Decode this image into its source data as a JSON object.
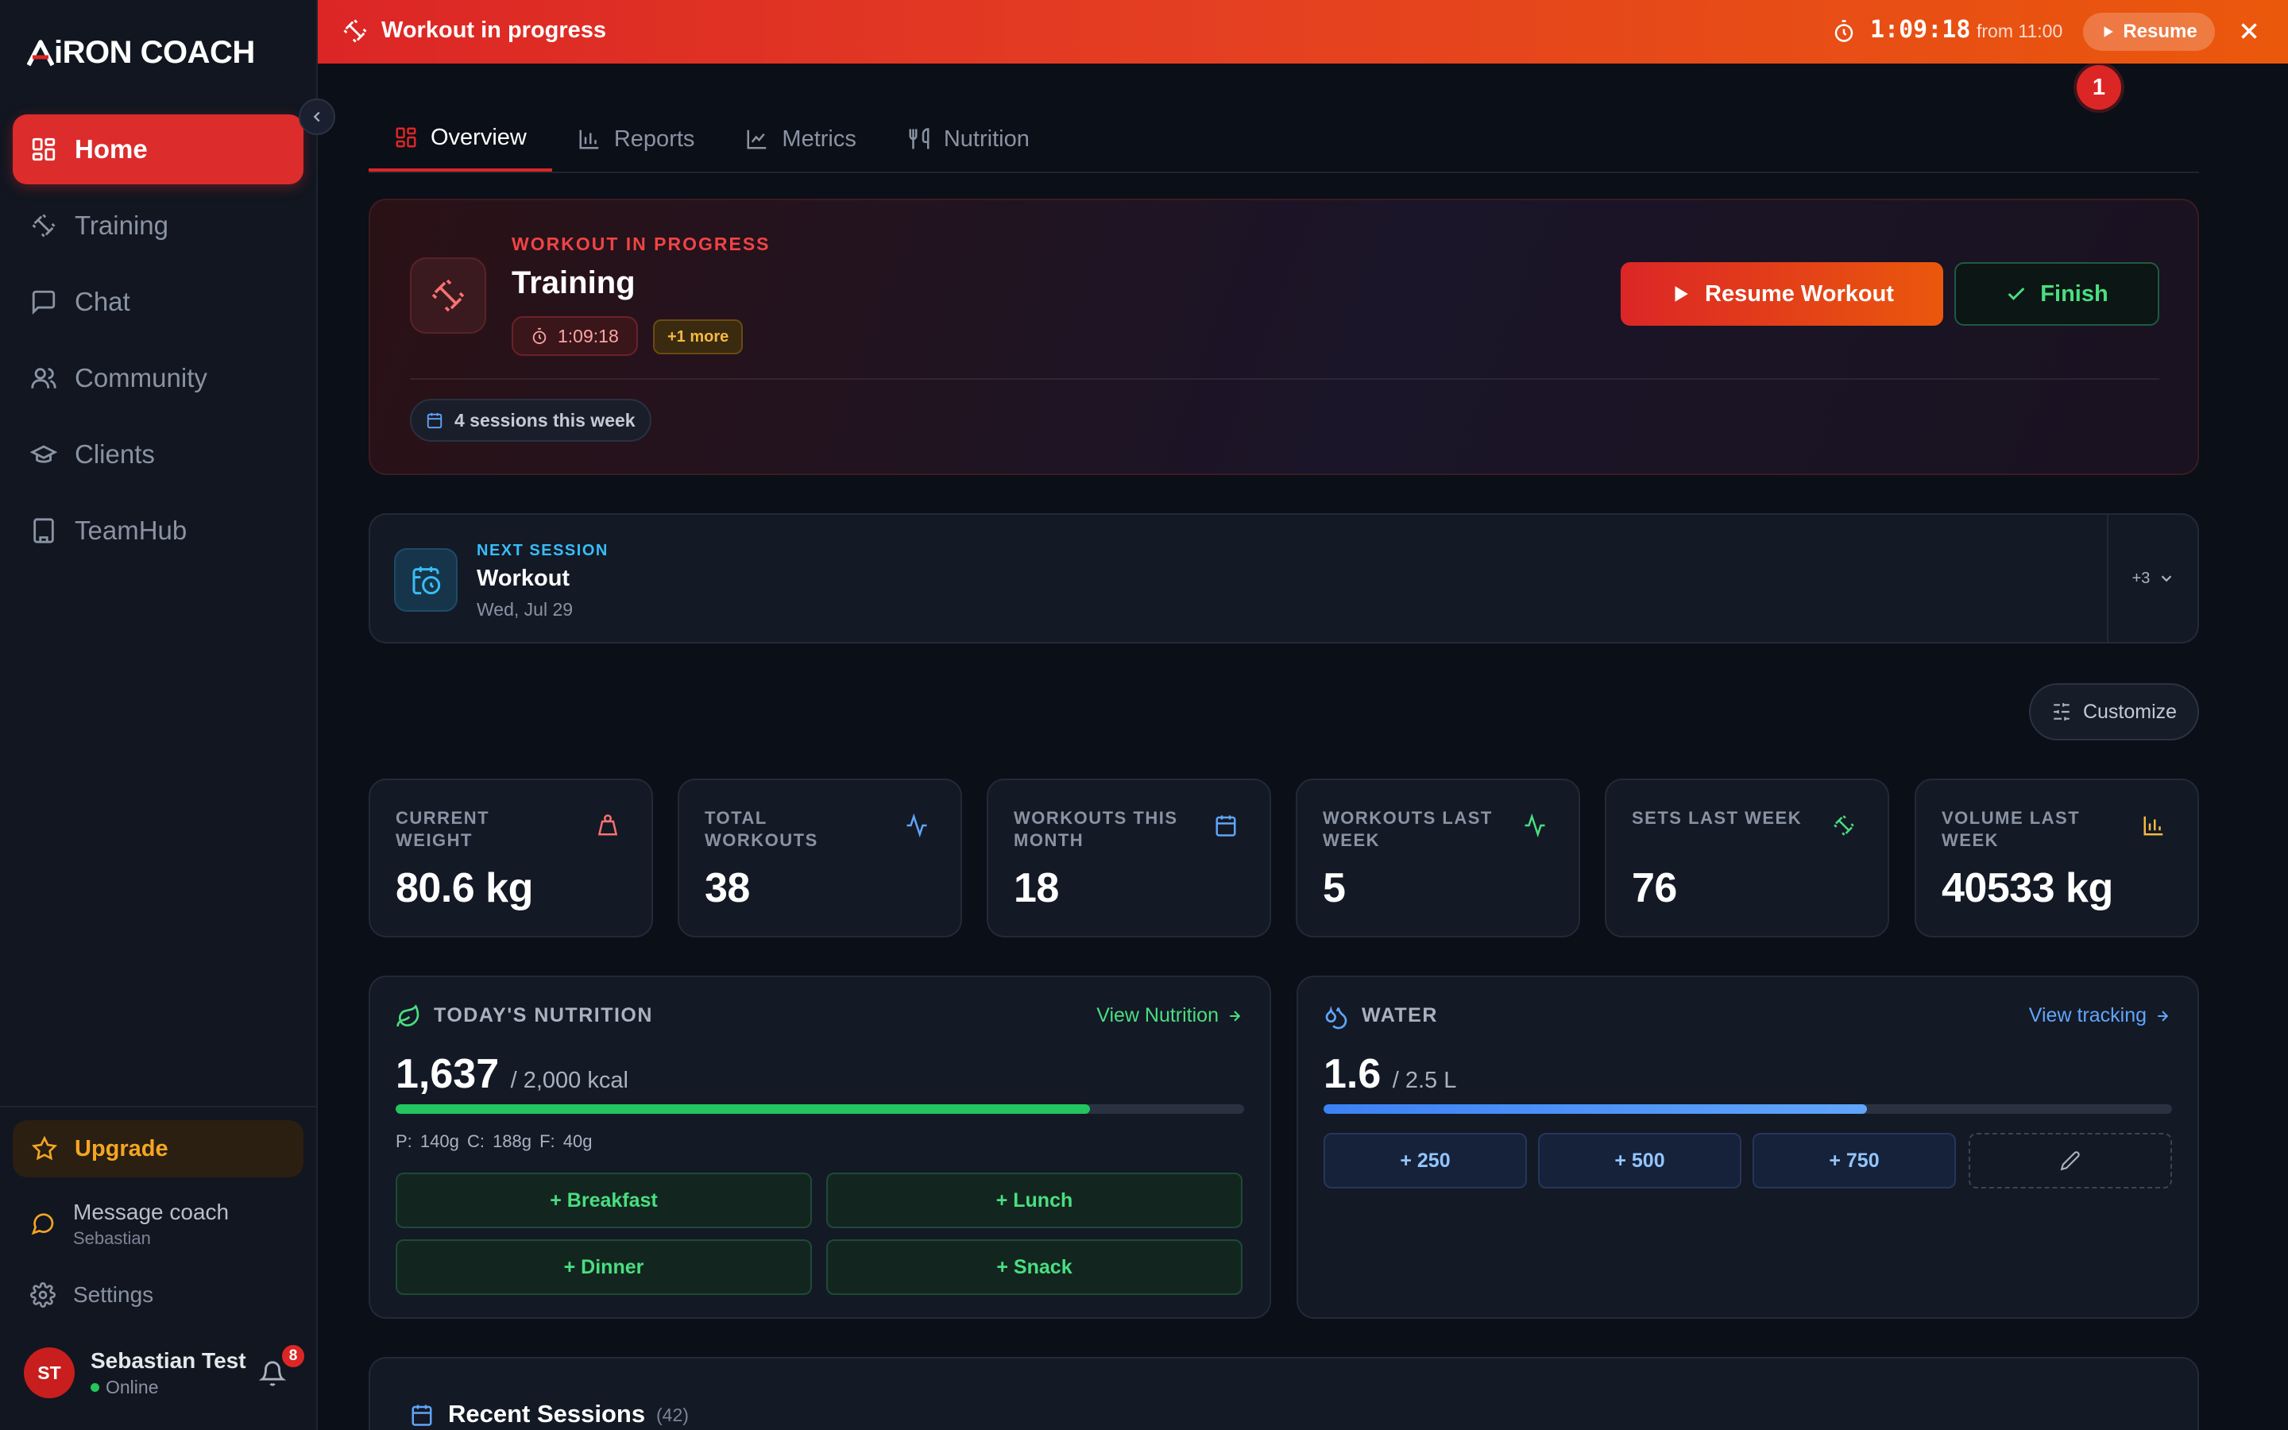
{
  "app": {
    "logo_text": "AIRON COACH",
    "logo_text_rest": "iRON COACH"
  },
  "sidebar": {
    "items": [
      {
        "label": "Home",
        "icon": "grid-icon",
        "active": true
      },
      {
        "label": "Training",
        "icon": "dumbbell-icon"
      },
      {
        "label": "Chat",
        "icon": "chat-icon"
      },
      {
        "label": "Community",
        "icon": "users-icon"
      },
      {
        "label": "Clients",
        "icon": "graduation-cap-icon"
      },
      {
        "label": "TeamHub",
        "icon": "building-icon"
      }
    ],
    "upgrade_label": "Upgrade",
    "message_coach": {
      "label": "Message coach",
      "coach_name": "Sebastian"
    },
    "settings_label": "Settings",
    "user": {
      "initials": "ST",
      "name": "Sebastian Test",
      "status": "Online",
      "notifications": "8"
    }
  },
  "banner": {
    "title": "Workout in progress",
    "timer": "1:09:18",
    "from": "from 11:00",
    "resume_label": "Resume",
    "step_badge": "1"
  },
  "tabs": [
    {
      "label": "Overview",
      "active": true
    },
    {
      "label": "Reports"
    },
    {
      "label": "Metrics"
    },
    {
      "label": "Nutrition"
    }
  ],
  "workout_card": {
    "label": "WORKOUT IN PROGRESS",
    "title": "Training",
    "timer": "1:09:18",
    "more": "+1 more",
    "resume_label": "Resume Workout",
    "finish_label": "Finish",
    "sessions": "4 sessions this week"
  },
  "next_session": {
    "label": "NEXT SESSION",
    "title": "Workout",
    "date": "Wed, Jul 29",
    "more": "+3"
  },
  "customize_label": "Customize",
  "stats": [
    {
      "label": "CURRENT WEIGHT",
      "value": "80.6 kg",
      "icon": "weight-icon",
      "color": "#f87171"
    },
    {
      "label": "TOTAL WORKOUTS",
      "value": "38",
      "icon": "activity-icon",
      "color": "#60a5fa"
    },
    {
      "label": "WORKOUTS THIS MONTH",
      "value": "18",
      "icon": "calendar-icon",
      "color": "#60a5fa"
    },
    {
      "label": "WORKOUTS LAST WEEK",
      "value": "5",
      "icon": "activity-icon",
      "color": "#4ade80"
    },
    {
      "label": "SETS LAST WEEK",
      "value": "76",
      "icon": "dumbbell-icon",
      "color": "#4ade80"
    },
    {
      "label": "VOLUME LAST WEEK",
      "value": "40533 kg",
      "icon": "bar-chart-icon",
      "color": "#f5b942"
    }
  ],
  "nutrition": {
    "title": "TODAY'S NUTRITION",
    "link": "View Nutrition",
    "current": "1,637",
    "goal": "/ 2,000 kcal",
    "progress": 0.8185,
    "macros": "P: 140g   C: 188g   F: 40g",
    "buttons": [
      "+ Breakfast",
      "+ Lunch",
      "+ Dinner",
      "+ Snack"
    ]
  },
  "water": {
    "title": "WATER",
    "link": "View tracking",
    "current": "1.6",
    "goal": "/ 2.5 L",
    "progress": 0.64,
    "buttons": [
      "+ 250",
      "+ 500",
      "+ 750"
    ]
  },
  "recent_sessions": {
    "title": "Recent Sessions",
    "count": "(42)"
  },
  "colors": {
    "accent": "#dc2626",
    "success": "#4ade80",
    "water": "#3b82f6"
  }
}
